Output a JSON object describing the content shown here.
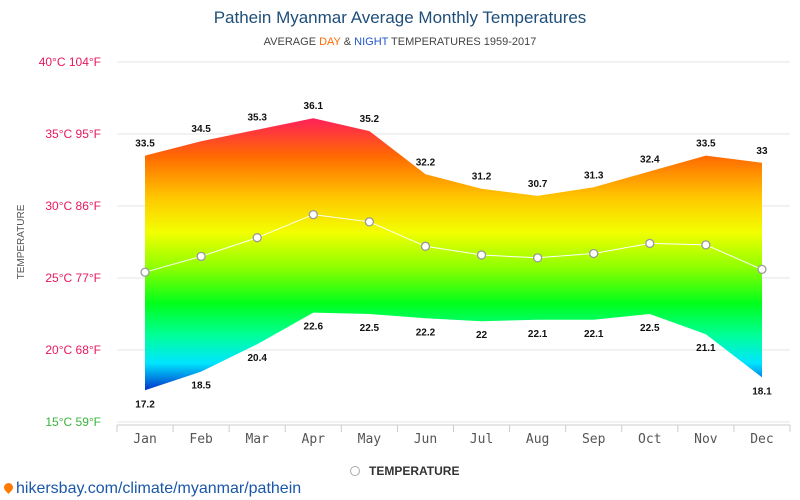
{
  "header": {
    "title": "Pathein Myanmar Average Monthly Temperatures",
    "subtitle_prefix": "AVERAGE ",
    "subtitle_day": "DAY",
    "subtitle_amp": " & ",
    "subtitle_night": "NIGHT",
    "subtitle_suffix": " TEMPERATURES 1959-2017"
  },
  "legend": {
    "label": "TEMPERATURE"
  },
  "source": {
    "text": "hikersbay.com/climate/myanmar/pathein"
  },
  "colors": {
    "day_accent": "#ff6a00",
    "night_accent": "#2255cc",
    "title": "#1f4e79",
    "tick_warm": "#e8175d",
    "tick_cool": "#3cb33c"
  },
  "chart_data": {
    "type": "area",
    "categories": [
      "Jan",
      "Feb",
      "Mar",
      "Apr",
      "May",
      "Jun",
      "Jul",
      "Aug",
      "Sep",
      "Oct",
      "Nov",
      "Dec"
    ],
    "series": [
      {
        "name": "",
        "values": [
          33.5,
          34.5,
          35.3,
          36.1,
          35.2,
          32.2,
          31.2,
          30.7,
          31.3,
          32.4,
          33.5,
          33
        ]
      },
      {
        "name": "",
        "values": [
          17.2,
          18.5,
          20.4,
          22.6,
          22.5,
          22.2,
          22,
          22.1,
          22.1,
          22.5,
          21.1,
          18.1
        ]
      },
      {
        "name": "TEMPERATURE",
        "values": [
          25.4,
          26.5,
          27.8,
          29.4,
          28.9,
          27.2,
          26.6,
          26.4,
          26.7,
          27.4,
          27.3,
          25.6
        ]
      }
    ],
    "y_ticks": [
      {
        "value": 40,
        "label": "40°C 104°F"
      },
      {
        "value": 35,
        "label": "35°C 95°F"
      },
      {
        "value": 30,
        "label": "30°C 86°F"
      },
      {
        "value": 25,
        "label": "25°C 77°F"
      },
      {
        "value": 20,
        "label": "20°C 68°F"
      },
      {
        "value": 15,
        "label": "15°C 59°F"
      }
    ],
    "ylabel": "TEMPERATURE",
    "xlabel": "",
    "ylim": [
      15,
      40
    ],
    "grid": true,
    "legend_position": "bottom-center"
  }
}
